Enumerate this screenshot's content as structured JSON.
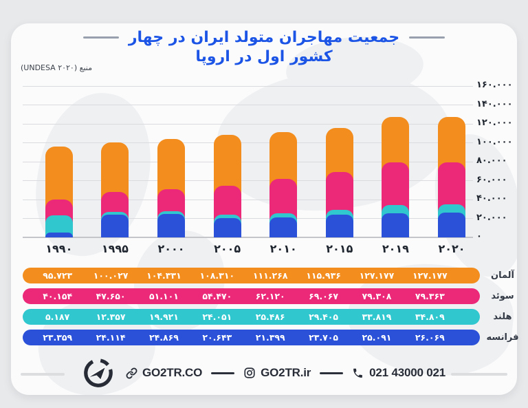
{
  "title": {
    "line1": "جمعیت مهاجران متولد ایران در چهار",
    "line2": "کشور اول در اروپا"
  },
  "source_label": "منبع (UNDESA ۲۰۲۰)",
  "chart_data": {
    "type": "bar",
    "mode": "overlay-from-zero",
    "title": "جمعیت مهاجران متولد ایران در چهار کشور اول در اروپا",
    "x_years": [
      1990,
      1995,
      2000,
      2005,
      2010,
      2015,
      2019,
      2020
    ],
    "x_labels_fa": [
      "۱۹۹۰",
      "۱۹۹۵",
      "۲۰۰۰",
      "۲۰۰۵",
      "۲۰۱۰",
      "۲۰۱۵",
      "۲۰۱۹",
      "۲۰۲۰"
    ],
    "ylim": [
      0,
      160000
    ],
    "y_tick_step": 20000,
    "y_tick_labels_fa": [
      "۱۶۰.۰۰۰",
      "۱۴۰.۰۰۰",
      "۱۲۰.۰۰۰",
      "۱۰۰.۰۰۰",
      "۸۰.۰۰۰",
      "۶۰.۰۰۰",
      "۴۰.۰۰۰",
      "۲۰.۰۰۰",
      "۰"
    ],
    "grid": true,
    "series": [
      {
        "name_fa": "آلمان",
        "color": "#F28D1E",
        "values": [
          95723,
          100027,
          104331,
          108310,
          111268,
          115936,
          127177,
          127177
        ],
        "values_fa": [
          "۹۵.۷۲۳",
          "۱۰۰.۰۲۷",
          "۱۰۴.۳۳۱",
          "۱۰۸.۳۱۰",
          "۱۱۱.۲۶۸",
          "۱۱۵.۹۳۶",
          "۱۲۷.۱۷۷",
          "۱۲۷.۱۷۷"
        ]
      },
      {
        "name_fa": "سوئد",
        "color": "#EC2879",
        "values": [
          40154,
          47650,
          51101,
          54470,
          62120,
          69067,
          79308,
          79363
        ],
        "values_fa": [
          "۴۰.۱۵۴",
          "۴۷.۶۵۰",
          "۵۱.۱۰۱",
          "۵۴.۴۷۰",
          "۶۲.۱۲۰",
          "۶۹.۰۶۷",
          "۷۹.۳۰۸",
          "۷۹.۳۶۳"
        ]
      },
      {
        "name_fa": "هلند",
        "color": "#31C7CF",
        "values": [
          5187,
          12357,
          19921,
          24051,
          25486,
          29405,
          33819,
          34809
        ],
        "values_fa": [
          "۵.۱۸۷",
          "۱۲.۳۵۷",
          "۱۹.۹۲۱",
          "۲۴.۰۵۱",
          "۲۵.۴۸۶",
          "۲۹.۴۰۵",
          "۳۳.۸۱۹",
          "۳۴.۸۰۹"
        ]
      },
      {
        "name_fa": "فرانسه",
        "color": "#2A51D8",
        "values": [
          23359,
          24114,
          24869,
          20643,
          21399,
          23705,
          25091,
          26069
        ],
        "values_fa": [
          "۲۳.۳۵۹",
          "۲۴.۱۱۴",
          "۲۴.۸۶۹",
          "۲۰.۶۴۳",
          "۲۱.۳۹۹",
          "۲۳.۷۰۵",
          "۲۵.۰۹۱",
          "۲۶.۰۶۹"
        ]
      }
    ]
  },
  "footer": {
    "website": "GO2TR.CO",
    "instagram": "GO2TR.ir",
    "phone": "021 43000 021"
  }
}
